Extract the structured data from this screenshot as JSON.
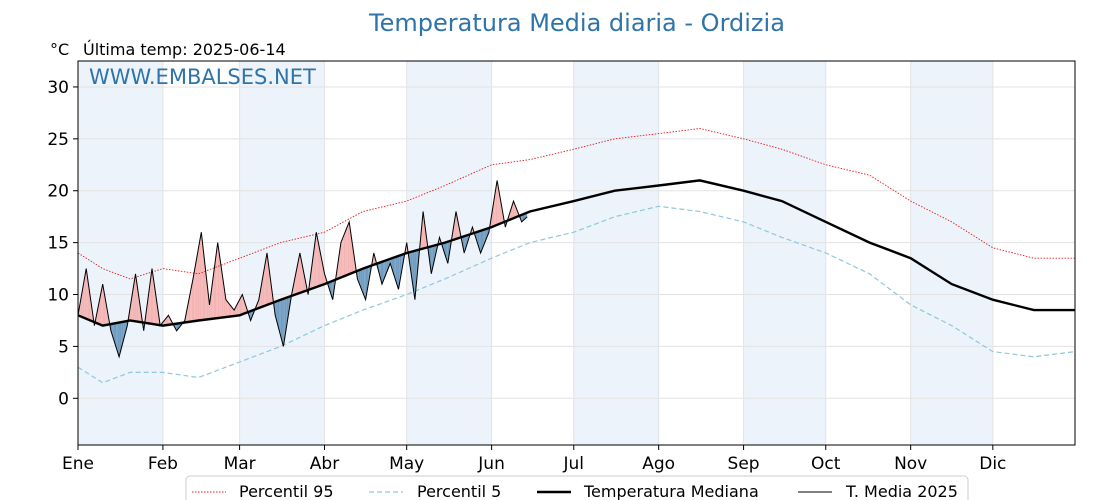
{
  "chart_data": {
    "type": "line",
    "title": "Temperatura Media diaria - Ordizia",
    "unit_label": "°C",
    "last_reading": "Última temp: 2025-06-14",
    "watermark": "WWW.EMBALSES.NET",
    "x_axis": {
      "type": "day-of-year",
      "range": [
        1,
        365
      ],
      "month_labels": [
        "Ene",
        "Feb",
        "Mar",
        "Abr",
        "May",
        "Jun",
        "Jul",
        "Ago",
        "Sep",
        "Oct",
        "Nov",
        "Dic"
      ],
      "month_start_days": [
        1,
        32,
        60,
        91,
        121,
        152,
        182,
        213,
        244,
        274,
        305,
        335
      ],
      "shaded_bands": [
        [
          1,
          31
        ],
        [
          60,
          90
        ],
        [
          121,
          151
        ],
        [
          182,
          212
        ],
        [
          244,
          273
        ],
        [
          305,
          334
        ]
      ]
    },
    "y_axis": {
      "range": [
        -4.5,
        32.5
      ],
      "ticks": [
        0,
        5,
        10,
        15,
        20,
        25,
        30
      ],
      "grid": true
    },
    "legend": {
      "placement": "bottom-center",
      "entries": [
        "Percentil 95",
        "Percentil 5",
        "Temperatura Mediana",
        "T. Media 2025"
      ]
    },
    "colors": {
      "p95": "#e41a1c",
      "p5": "#8ec8dc",
      "mediana": "#000000",
      "media2025": "#000000",
      "above": "#f4b4b4",
      "below": "#6f9cc0",
      "band": "#edf3fa"
    },
    "series": [
      {
        "name": "Percentil 95",
        "style": "dotted-red",
        "x": [
          1,
          10,
          20,
          32,
          45,
          60,
          75,
          91,
          105,
          121,
          135,
          152,
          166,
          182,
          197,
          213,
          228,
          244,
          258,
          274,
          290,
          305,
          320,
          335,
          350,
          365
        ],
        "values": [
          14.0,
          12.5,
          11.5,
          12.5,
          12.0,
          13.5,
          15.0,
          16.0,
          18.0,
          19.0,
          20.5,
          22.5,
          23.0,
          24.0,
          25.0,
          25.5,
          26.0,
          25.0,
          24.0,
          22.5,
          21.5,
          19.0,
          17.0,
          14.5,
          13.5,
          13.5
        ]
      },
      {
        "name": "Percentil 5",
        "style": "dashed-lightblue",
        "x": [
          1,
          10,
          20,
          32,
          45,
          60,
          75,
          91,
          105,
          121,
          135,
          152,
          166,
          182,
          197,
          213,
          228,
          244,
          258,
          274,
          290,
          305,
          320,
          335,
          350,
          365
        ],
        "values": [
          3.0,
          1.5,
          2.5,
          2.5,
          2.0,
          3.5,
          5.0,
          7.0,
          8.5,
          10.0,
          11.5,
          13.5,
          15.0,
          16.0,
          17.5,
          18.5,
          18.0,
          17.0,
          15.5,
          14.0,
          12.0,
          9.0,
          7.0,
          4.5,
          4.0,
          4.5
        ]
      },
      {
        "name": "Temperatura Mediana",
        "style": "thick-black",
        "x": [
          1,
          10,
          20,
          32,
          45,
          60,
          75,
          91,
          105,
          121,
          135,
          152,
          166,
          182,
          197,
          213,
          228,
          244,
          258,
          274,
          290,
          305,
          320,
          335,
          350,
          365
        ],
        "values": [
          8.0,
          7.0,
          7.5,
          7.0,
          7.5,
          8.0,
          9.5,
          11.0,
          12.5,
          14.0,
          15.0,
          16.5,
          18.0,
          19.0,
          20.0,
          20.5,
          21.0,
          20.0,
          19.0,
          17.0,
          15.0,
          13.5,
          11.0,
          9.5,
          8.5,
          8.5
        ]
      },
      {
        "name": "T. Media 2025",
        "style": "thin-black",
        "x": [
          1,
          4,
          7,
          10,
          13,
          16,
          19,
          22,
          25,
          28,
          31,
          34,
          37,
          40,
          43,
          46,
          49,
          52,
          55,
          58,
          61,
          64,
          67,
          70,
          73,
          76,
          79,
          82,
          85,
          88,
          91,
          94,
          97,
          100,
          103,
          106,
          109,
          112,
          115,
          118,
          121,
          124,
          127,
          130,
          133,
          136,
          139,
          142,
          145,
          148,
          151,
          154,
          157,
          160,
          163,
          165
        ],
        "values": [
          8.0,
          12.5,
          7.0,
          11.0,
          6.5,
          4.0,
          7.0,
          12.0,
          6.5,
          12.5,
          7.0,
          8.0,
          6.5,
          7.5,
          11.5,
          16.0,
          9.0,
          15.0,
          9.5,
          8.5,
          10.0,
          7.5,
          9.5,
          14.0,
          8.0,
          5.0,
          10.0,
          14.0,
          10.0,
          16.0,
          12.0,
          9.5,
          15.0,
          17.0,
          11.5,
          9.5,
          14.0,
          11.0,
          13.0,
          10.5,
          15.0,
          9.5,
          18.0,
          12.0,
          15.5,
          13.0,
          18.0,
          14.0,
          16.5,
          14.0,
          16.0,
          21.0,
          16.5,
          19.0,
          17.0,
          17.5
        ]
      }
    ]
  },
  "legend_labels": {
    "p95": "Percentil 95",
    "p5": "Percentil 5",
    "mediana": "Temperatura Mediana",
    "media2025": "T. Media 2025"
  }
}
